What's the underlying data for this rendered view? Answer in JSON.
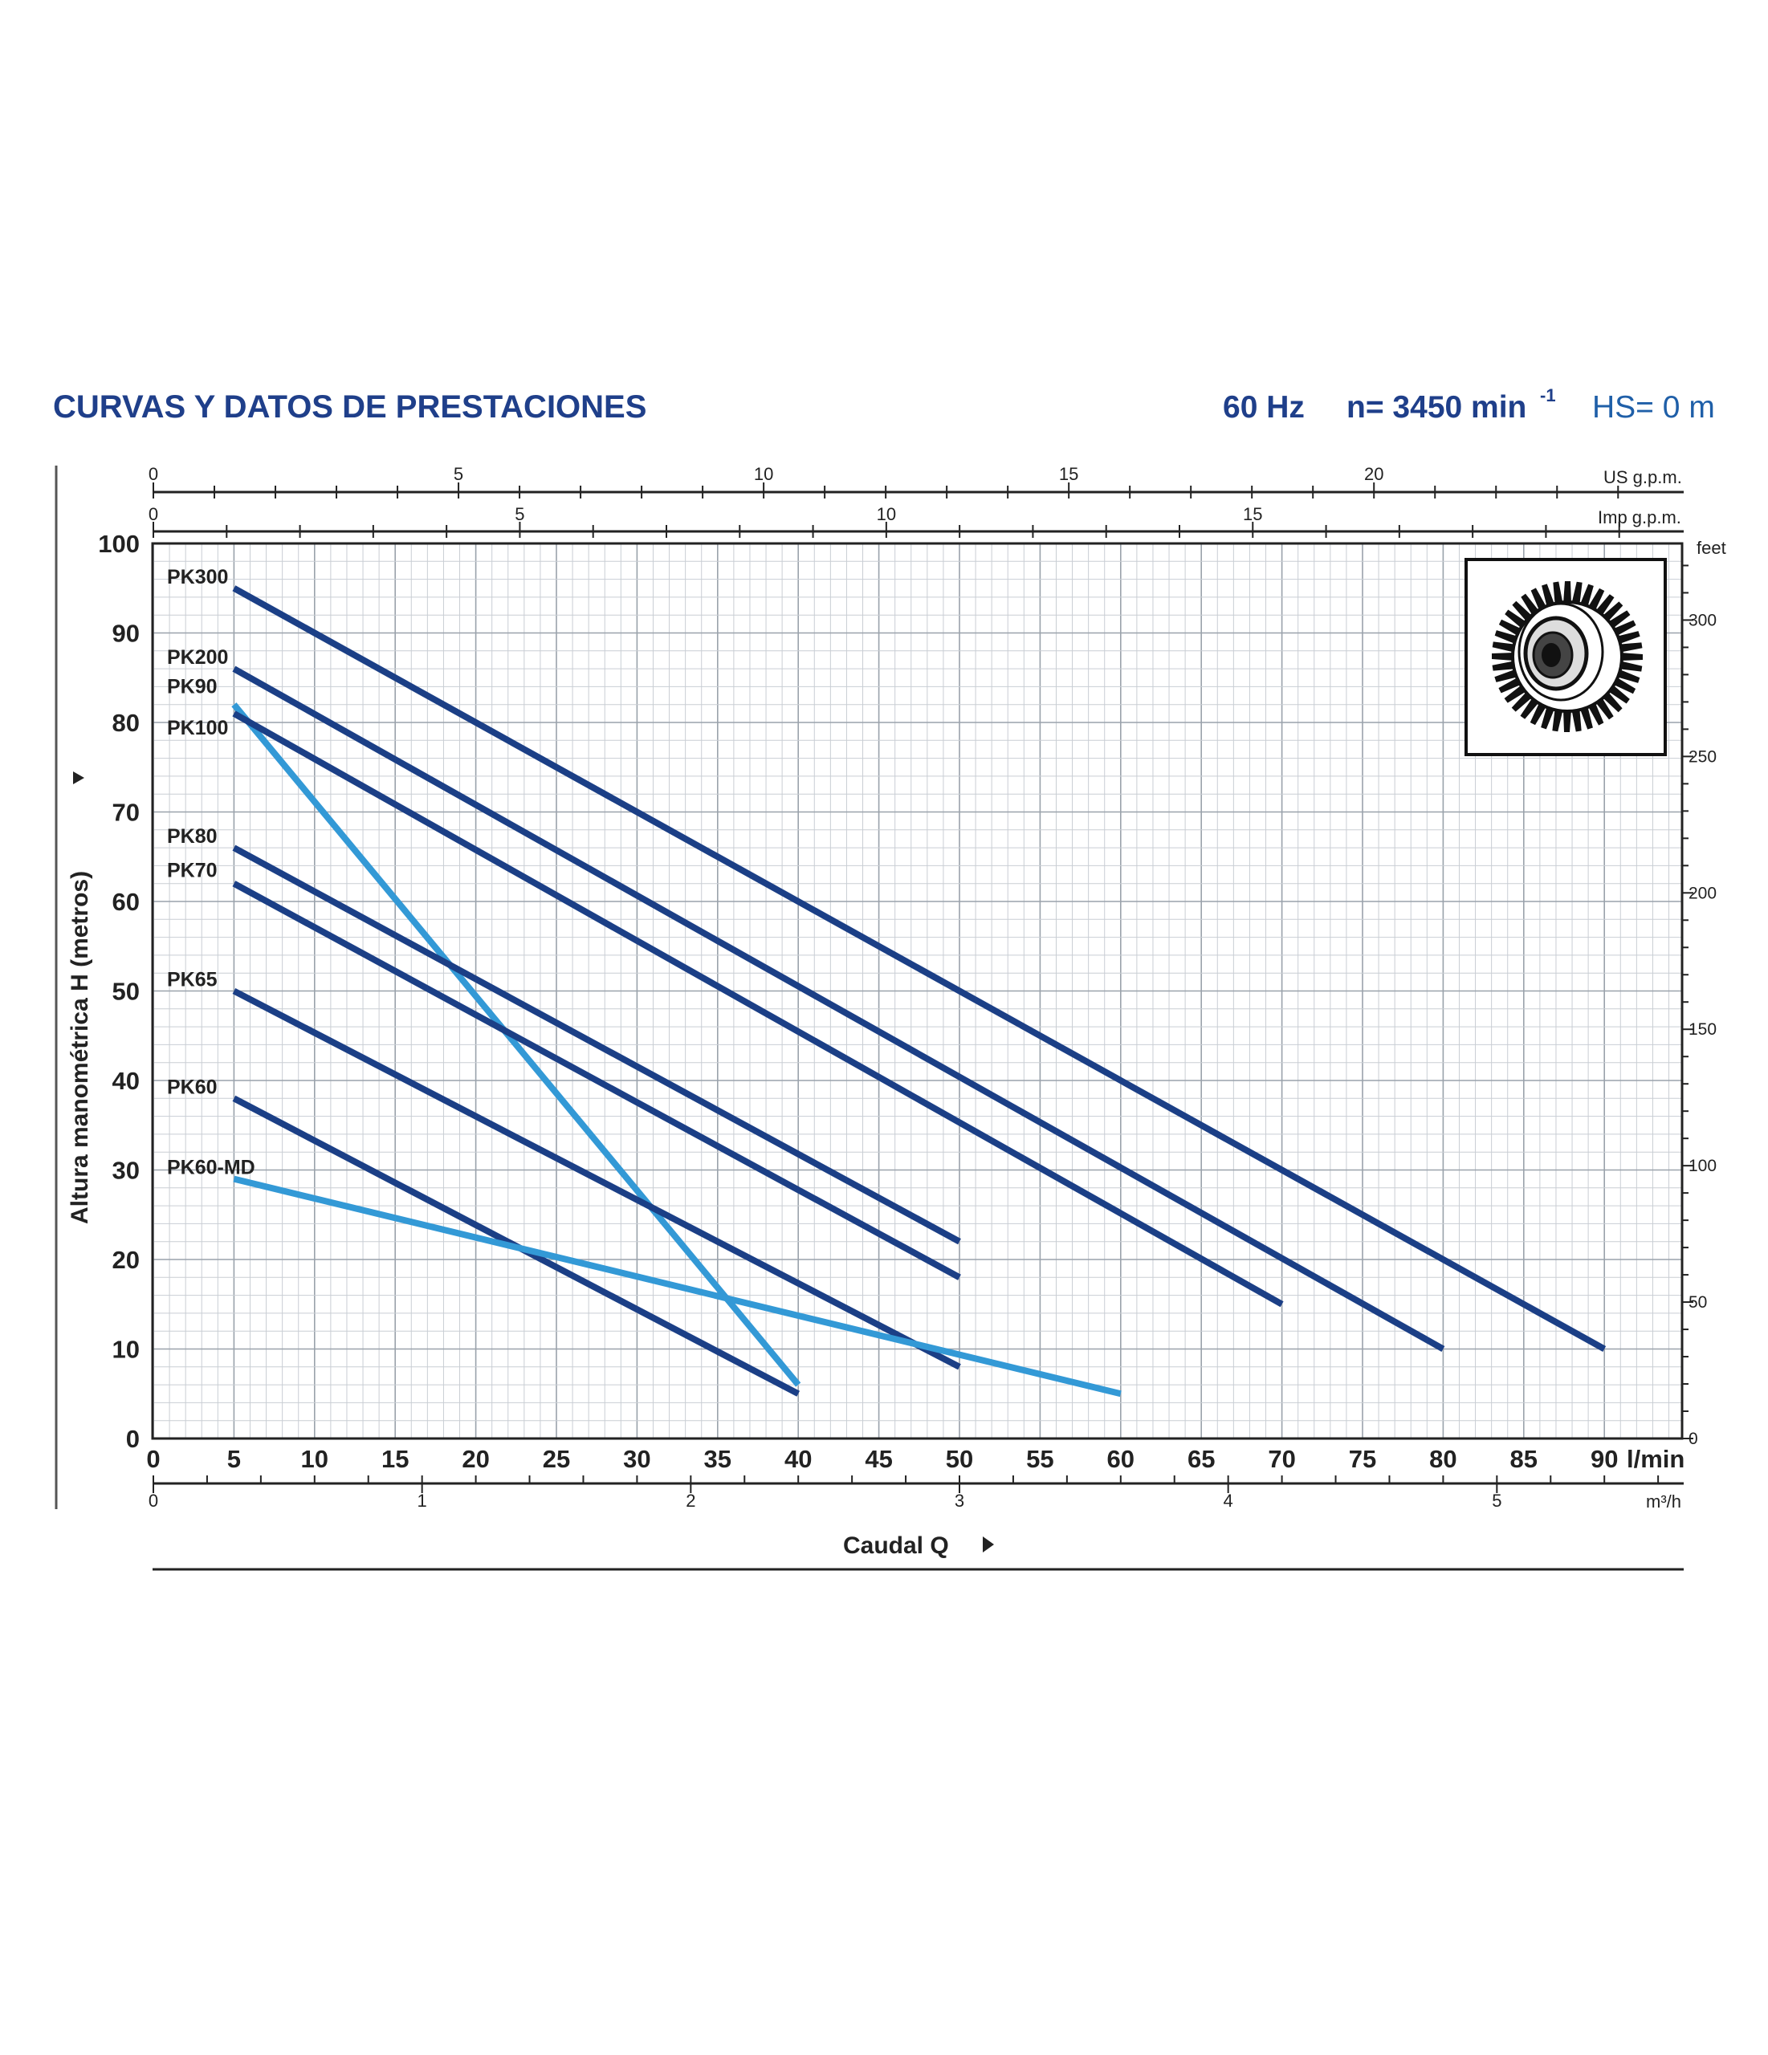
{
  "header": {
    "title": "CURVAS Y DATOS DE PRESTACIONES",
    "frequency": "60 Hz",
    "speed_base": "n= 3450 min",
    "speed_exp": "-1",
    "suction": "HS= 0 m"
  },
  "colors": {
    "title": "#1f3f8a",
    "series_dark": "#1b3f86",
    "series_light": "#3399d6",
    "grid": "#bfc5cc"
  },
  "chart_data": {
    "type": "line",
    "title": "CURVAS Y DATOS DE PRESTACIONES",
    "xlabel": "Caudal Q",
    "ylabel": "Altura manométrica H (metros)",
    "xlim": [
      0,
      95
    ],
    "ylim": [
      0,
      100
    ],
    "x_unit": "l/min",
    "x_ticks": [
      0,
      5,
      10,
      15,
      20,
      25,
      30,
      35,
      40,
      45,
      50,
      55,
      60,
      65,
      70,
      75,
      80,
      85,
      90
    ],
    "y_ticks": [
      0,
      10,
      20,
      30,
      40,
      50,
      60,
      70,
      80,
      90,
      100
    ],
    "grid": true,
    "secondary_axes": {
      "us_gpm": {
        "unit": "US g.p.m.",
        "ticks": [
          0,
          5,
          10,
          15,
          20
        ]
      },
      "imp_gpm": {
        "unit": "Imp g.p.m.",
        "ticks": [
          0,
          5,
          10,
          15
        ]
      },
      "m3h": {
        "unit": "m³/h",
        "ticks": [
          0,
          1,
          2,
          3,
          4,
          5
        ]
      },
      "feet": {
        "unit": "feet",
        "ticks": [
          0,
          50,
          100,
          150,
          200,
          250,
          300
        ]
      }
    },
    "series": [
      {
        "name": "PK300",
        "color": "#1b3f86",
        "x": [
          5,
          90
        ],
        "y": [
          95,
          10
        ]
      },
      {
        "name": "PK200",
        "color": "#1b3f86",
        "x": [
          5,
          80
        ],
        "y": [
          86,
          10
        ]
      },
      {
        "name": "PK90",
        "color": "#3399d6",
        "x": [
          5,
          40
        ],
        "y": [
          82,
          6
        ]
      },
      {
        "name": "PK100",
        "color": "#1b3f86",
        "x": [
          5,
          70
        ],
        "y": [
          81,
          15
        ]
      },
      {
        "name": "PK80",
        "color": "#1b3f86",
        "x": [
          5,
          50
        ],
        "y": [
          66,
          22
        ]
      },
      {
        "name": "PK70",
        "color": "#1b3f86",
        "x": [
          5,
          50
        ],
        "y": [
          62,
          18
        ]
      },
      {
        "name": "PK65",
        "color": "#1b3f86",
        "x": [
          5,
          50
        ],
        "y": [
          50,
          8
        ]
      },
      {
        "name": "PK60",
        "color": "#1b3f86",
        "x": [
          5,
          40
        ],
        "y": [
          38,
          5
        ]
      },
      {
        "name": "PK60-MD",
        "color": "#3399d6",
        "x": [
          5,
          60
        ],
        "y": [
          29,
          5
        ]
      }
    ]
  }
}
